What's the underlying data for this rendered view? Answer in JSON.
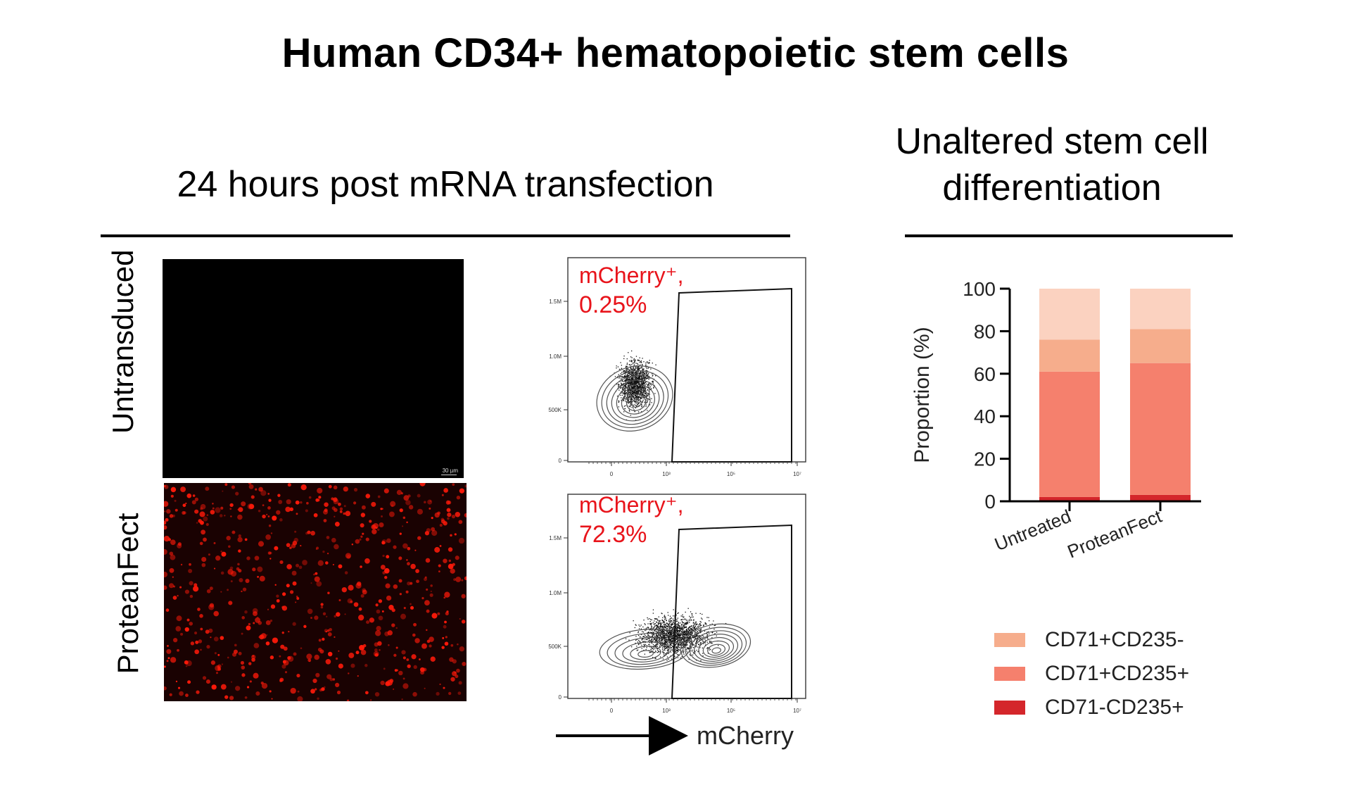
{
  "title": "Human CD34+ hematopoietic stem cells",
  "left_section": {
    "heading": "24 hours post mRNA transfection",
    "rows": [
      {
        "label": "Untransduced",
        "gate_text_line1": "mCherry⁺,",
        "gate_text_line2": "0.25%",
        "scale_bar": "30 µm"
      },
      {
        "label": "ProteanFect",
        "gate_text_line1": "mCherry⁺,",
        "gate_text_line2": "72.3%"
      }
    ],
    "flow_axis": {
      "y_ticks": [
        "1.5M",
        "1.0M",
        "500K",
        "0"
      ],
      "x_ticks": [
        "0",
        "10³",
        "10⁵",
        "10⁷"
      ],
      "x_label": "mCherry"
    }
  },
  "right_section": {
    "heading_line1": "Unaltered stem cell",
    "heading_line2": "differentiation"
  },
  "colors": {
    "gate_text": "#e8141b",
    "cd71p_cd235m": "#f6ad8c",
    "cd71p_cd235p": "#f5806d",
    "cd71m_cd235p": "#d4262b",
    "top_segment": "#fbd2c0",
    "microscopy_dots": "#ff1a0a"
  },
  "chart_data": {
    "type": "bar",
    "stacked": true,
    "ylabel": "Proportion (%)",
    "ylim": [
      0,
      100
    ],
    "y_ticks": [
      0,
      20,
      40,
      60,
      80,
      100
    ],
    "categories": [
      "Untreated",
      "ProteanFect"
    ],
    "series": [
      {
        "name": "CD71-CD235+",
        "values": [
          2,
          3
        ],
        "color": "#d4262b"
      },
      {
        "name": "CD71+CD235+",
        "values": [
          59,
          62
        ],
        "color": "#f5806d"
      },
      {
        "name": "CD71+CD235-",
        "values": [
          15,
          16
        ],
        "color": "#f6ad8c"
      },
      {
        "values": [
          24,
          19
        ],
        "color": "#fbd2c0"
      }
    ],
    "legend": [
      "CD71+CD235-",
      "CD71+CD235+",
      "CD71-CD235+"
    ],
    "legend_position": "bottom",
    "grid": false
  }
}
